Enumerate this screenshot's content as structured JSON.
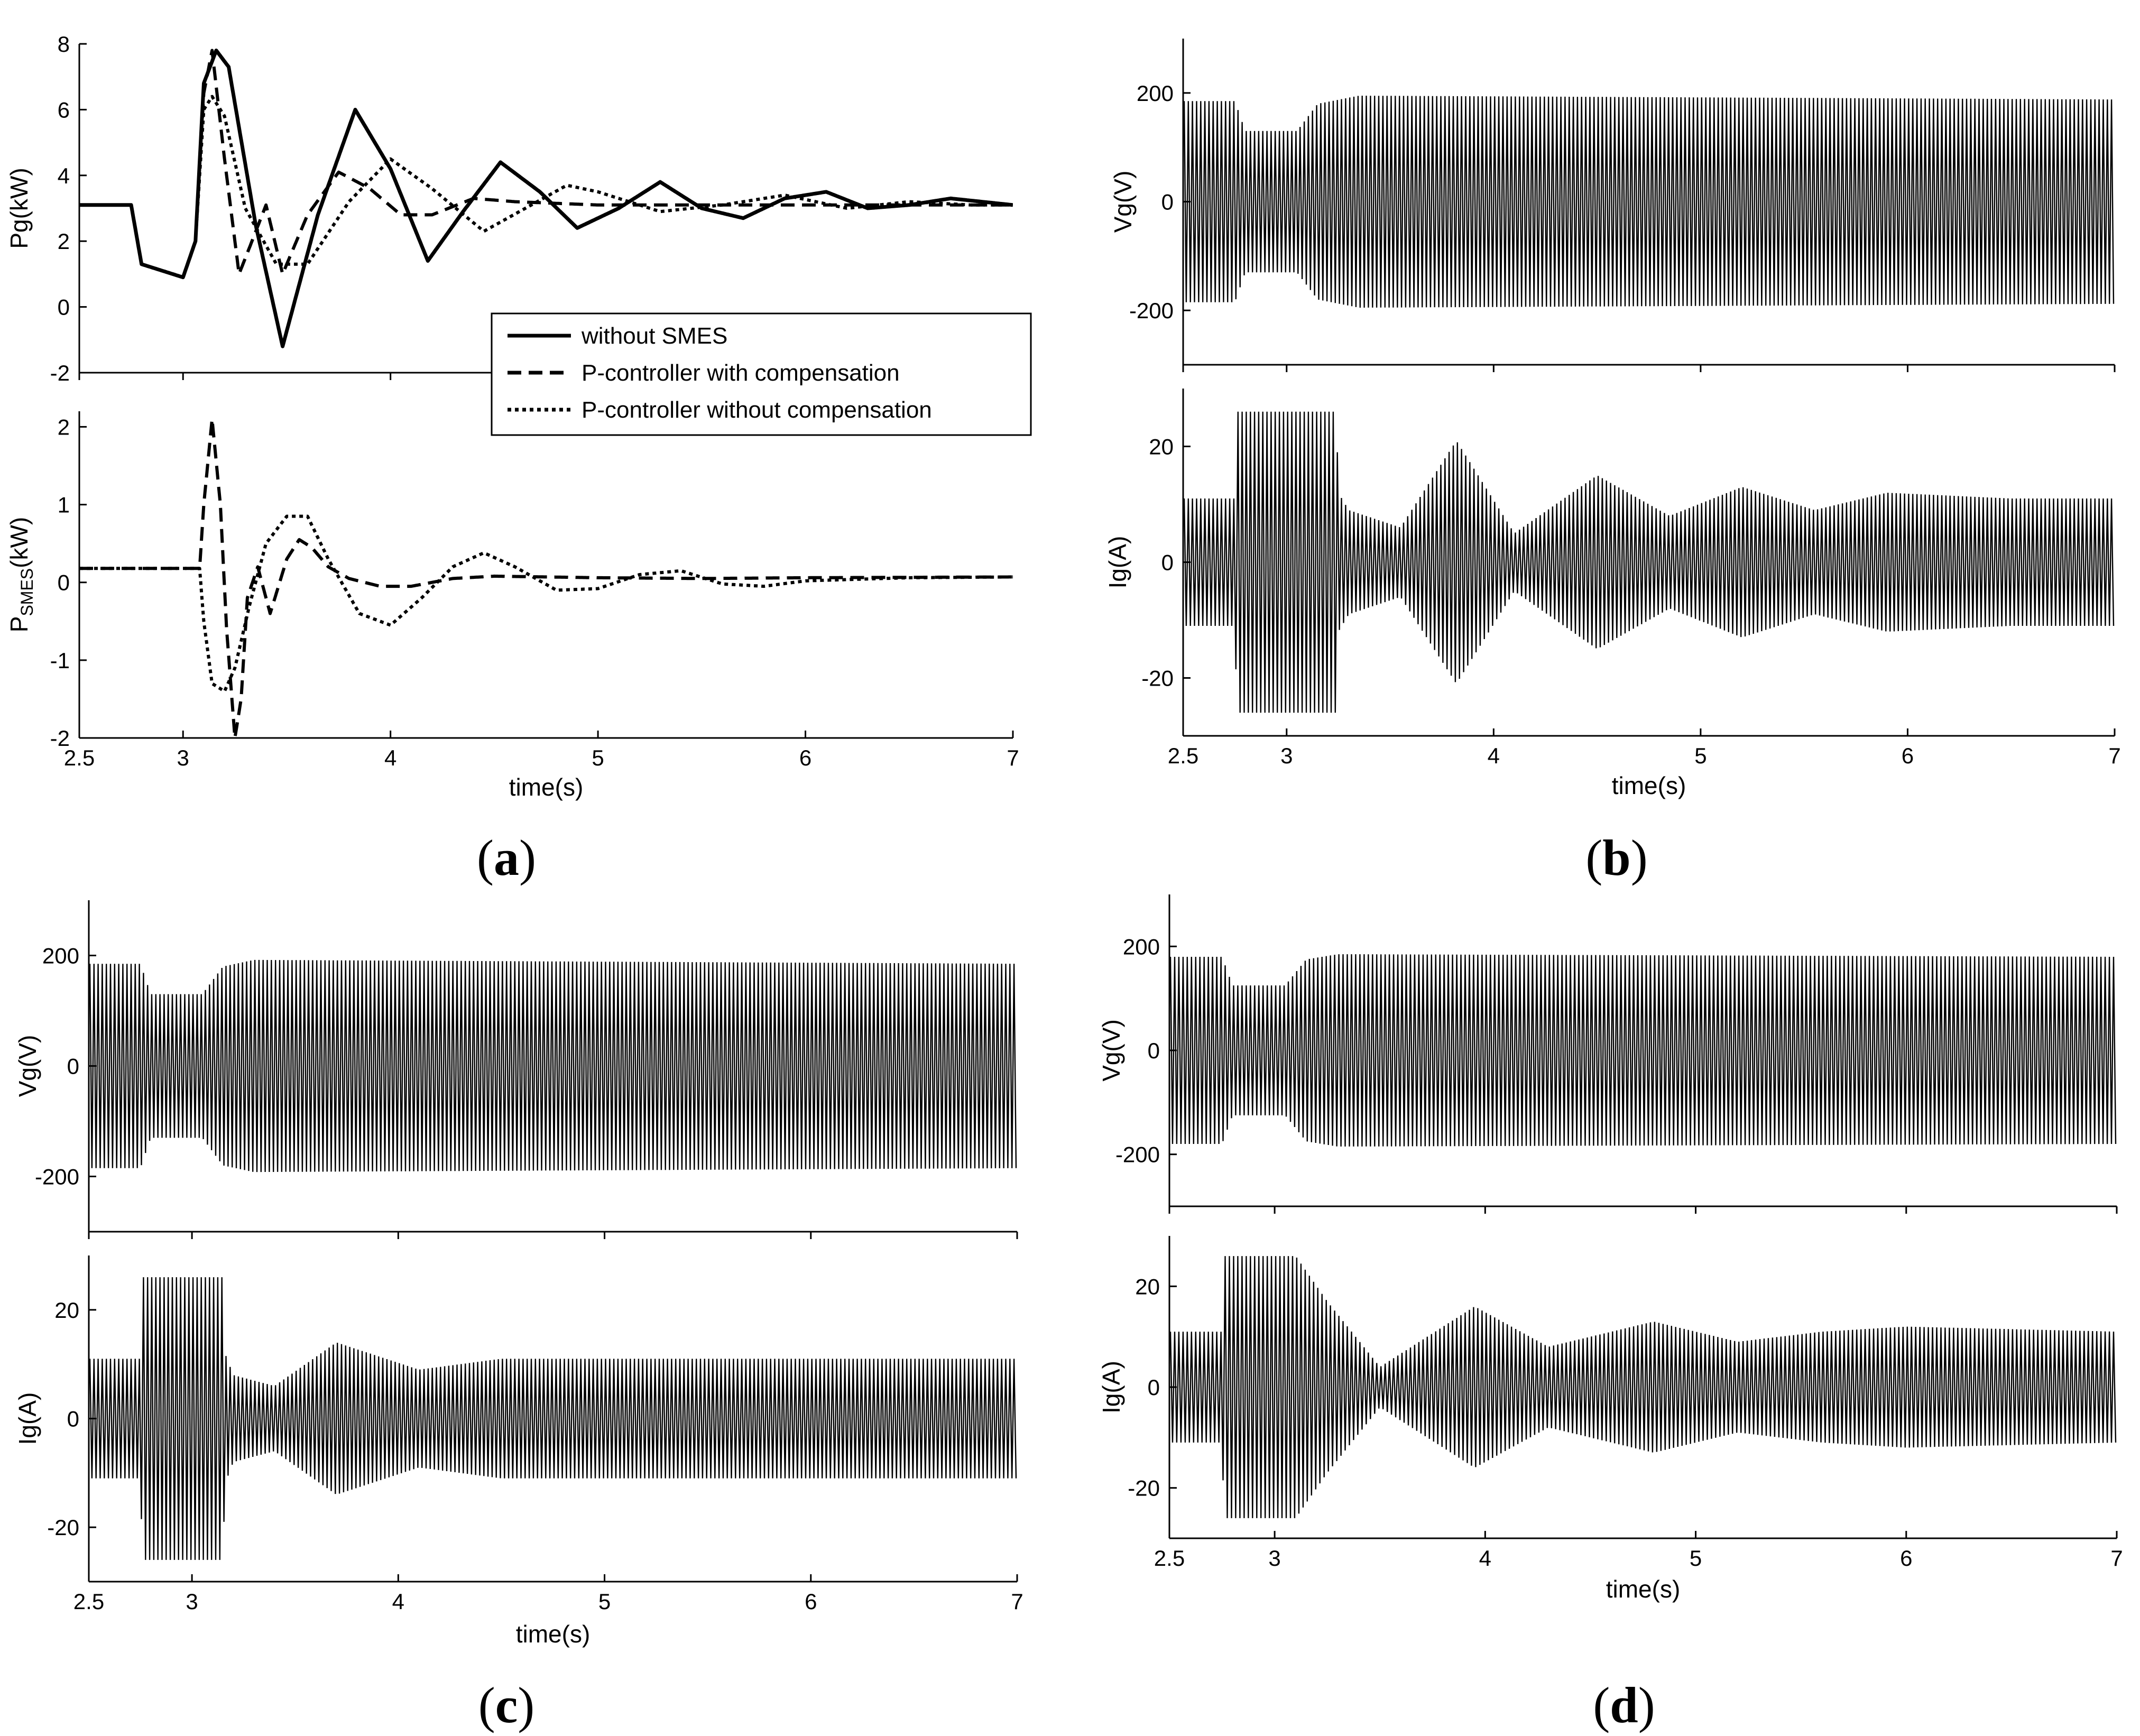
{
  "panel_labels": [
    "a",
    "b",
    "c",
    "d"
  ],
  "chart_data": [
    {
      "panel": "a",
      "type": "line",
      "xlabel": "time(s)",
      "ylabel": "Pg(kW)",
      "xlim": [
        2.5,
        7
      ],
      "ylim": [
        -2,
        8
      ],
      "xticks": [
        2.5,
        3,
        4,
        5,
        6,
        7
      ],
      "yticks": [
        -2,
        0,
        2,
        4,
        6,
        8
      ],
      "legend": {
        "position": "lower-right",
        "entries": [
          "without SMES",
          "P-controller  with compensation",
          "P-controller  without compensation"
        ]
      },
      "series": [
        {
          "name": "without SMES",
          "style": "solid",
          "x": [
            2.5,
            2.75,
            2.8,
            3.0,
            3.06,
            3.1,
            3.16,
            3.22,
            3.35,
            3.48,
            3.65,
            3.83,
            4.0,
            4.18,
            4.35,
            4.53,
            4.72,
            4.9,
            5.1,
            5.3,
            5.5,
            5.7,
            5.9,
            6.1,
            6.3,
            6.5,
            6.7,
            7.0
          ],
          "y": [
            3.1,
            3.1,
            1.3,
            0.9,
            2.0,
            6.8,
            7.8,
            7.3,
            2.5,
            -1.2,
            2.8,
            6.0,
            4.2,
            1.4,
            2.9,
            4.4,
            3.5,
            2.4,
            3.0,
            3.8,
            3.0,
            2.7,
            3.3,
            3.5,
            3.0,
            3.1,
            3.3,
            3.1
          ]
        },
        {
          "name": "P-controller  with compensation",
          "style": "dashed",
          "x": [
            2.5,
            2.75,
            2.8,
            3.0,
            3.06,
            3.1,
            3.14,
            3.2,
            3.27,
            3.32,
            3.4,
            3.48,
            3.6,
            3.75,
            3.9,
            4.05,
            4.2,
            4.4,
            4.6,
            5.0,
            5.5,
            6.0,
            6.5,
            7.0
          ],
          "y": [
            3.1,
            3.1,
            1.3,
            0.9,
            2.0,
            6.5,
            7.8,
            4.5,
            1.0,
            1.8,
            3.1,
            1.0,
            2.8,
            4.1,
            3.6,
            2.8,
            2.8,
            3.3,
            3.2,
            3.1,
            3.1,
            3.1,
            3.1,
            3.1
          ]
        },
        {
          "name": "P-controller  without compensation",
          "style": "dotted",
          "x": [
            2.5,
            2.75,
            2.8,
            3.0,
            3.06,
            3.1,
            3.14,
            3.2,
            3.3,
            3.45,
            3.6,
            3.8,
            4.0,
            4.2,
            4.45,
            4.65,
            4.85,
            5.0,
            5.3,
            5.6,
            5.9,
            6.2,
            6.5,
            6.8,
            7.0
          ],
          "y": [
            3.1,
            3.1,
            1.3,
            0.9,
            2.0,
            6.0,
            6.4,
            5.8,
            3.0,
            1.3,
            1.3,
            3.2,
            4.5,
            3.6,
            2.3,
            3.0,
            3.7,
            3.5,
            2.9,
            3.1,
            3.4,
            3.0,
            3.2,
            3.1,
            3.1
          ]
        }
      ]
    },
    {
      "panel": "a",
      "type": "line",
      "xlabel": "time(s)",
      "ylabel": "P",
      "ylabel_sub": "SMES",
      "ylabel_suffix": "(kW)",
      "xlim": [
        2.5,
        7
      ],
      "ylim": [
        -2,
        2.2
      ],
      "xticks": [
        2.5,
        3,
        4,
        5,
        6,
        7
      ],
      "yticks": [
        -2,
        -1,
        0,
        1,
        2
      ],
      "series": [
        {
          "name": "P-controller  with compensation",
          "style": "dashed",
          "x": [
            2.5,
            3.08,
            3.1,
            3.14,
            3.18,
            3.21,
            3.25,
            3.28,
            3.31,
            3.36,
            3.42,
            3.5,
            3.56,
            3.62,
            3.7,
            3.8,
            3.95,
            4.1,
            4.3,
            4.5,
            5.0,
            5.5,
            6.0,
            7.0
          ],
          "y": [
            0.18,
            0.18,
            1.0,
            2.1,
            1.0,
            -0.6,
            -2.0,
            -1.5,
            -0.2,
            0.2,
            -0.4,
            0.3,
            0.55,
            0.45,
            0.2,
            0.05,
            -0.05,
            -0.05,
            0.05,
            0.08,
            0.06,
            0.05,
            0.06,
            0.07
          ]
        },
        {
          "name": "P-controller  without compensation",
          "style": "dotted",
          "x": [
            2.5,
            3.08,
            3.1,
            3.14,
            3.2,
            3.25,
            3.32,
            3.4,
            3.5,
            3.6,
            3.7,
            3.85,
            4.0,
            4.15,
            4.3,
            4.45,
            4.6,
            4.8,
            5.0,
            5.2,
            5.4,
            5.6,
            5.8,
            6.0,
            6.5,
            7.0
          ],
          "y": [
            0.18,
            0.18,
            -0.5,
            -1.3,
            -1.4,
            -1.1,
            -0.3,
            0.5,
            0.85,
            0.85,
            0.3,
            -0.4,
            -0.55,
            -0.2,
            0.2,
            0.38,
            0.2,
            -0.1,
            -0.08,
            0.1,
            0.15,
            -0.02,
            -0.05,
            0.02,
            0.06,
            0.07
          ]
        }
      ]
    },
    {
      "panel": "b",
      "type": "line",
      "xlabel": "time(s)",
      "ylabel": "Vg(V)",
      "xlim": [
        2.5,
        7
      ],
      "ylim": [
        -300,
        300
      ],
      "xticks": [
        2.5,
        3,
        4,
        5,
        6,
        7
      ],
      "yticks": [
        -200,
        0,
        200
      ],
      "envelope": {
        "x": [
          2.5,
          2.75,
          2.8,
          3.05,
          3.15,
          3.35,
          7.0
        ],
        "amplitude": [
          185,
          185,
          130,
          130,
          180,
          195,
          188
        ]
      }
    },
    {
      "panel": "b",
      "type": "line",
      "xlabel": "time(s)",
      "ylabel": "Ig(A)",
      "xlim": [
        2.5,
        7
      ],
      "ylim": [
        -30,
        30
      ],
      "xticks": [
        2.5,
        3,
        4,
        5,
        6,
        7
      ],
      "yticks": [
        -20,
        0,
        20
      ],
      "envelope": {
        "x": [
          2.5,
          2.75,
          2.76,
          3.24,
          3.25,
          3.3,
          3.55,
          3.82,
          4.1,
          4.5,
          4.85,
          5.2,
          5.55,
          5.9,
          6.5,
          7.0
        ],
        "amplitude": [
          11,
          11,
          26,
          26,
          12,
          9,
          6,
          21,
          5,
          15,
          8,
          13,
          9,
          12,
          11,
          11
        ]
      }
    },
    {
      "panel": "c",
      "type": "line",
      "xlabel": "time(s)",
      "ylabel": "Vg(V)",
      "xlim": [
        2.5,
        7
      ],
      "ylim": [
        -300,
        300
      ],
      "xticks": [
        2.5,
        3,
        4,
        5,
        6,
        7
      ],
      "yticks": [
        -200,
        0,
        200
      ],
      "envelope": {
        "x": [
          2.5,
          2.75,
          2.8,
          3.05,
          3.15,
          3.3,
          7.0
        ],
        "amplitude": [
          185,
          185,
          130,
          130,
          180,
          192,
          185
        ]
      }
    },
    {
      "panel": "c",
      "type": "line",
      "xlabel": "time(s)",
      "ylabel": "Ig(A)",
      "xlim": [
        2.5,
        7
      ],
      "ylim": [
        -30,
        30
      ],
      "xticks": [
        2.5,
        3,
        4,
        5,
        6,
        7
      ],
      "yticks": [
        -20,
        0,
        20
      ],
      "envelope": {
        "x": [
          2.5,
          2.75,
          2.76,
          3.15,
          3.16,
          3.2,
          3.4,
          3.7,
          4.1,
          4.5,
          7.0
        ],
        "amplitude": [
          11,
          11,
          26,
          26,
          12,
          8,
          6,
          14,
          9,
          11,
          11
        ]
      }
    },
    {
      "panel": "d",
      "type": "line",
      "xlabel": "time(s)",
      "ylabel": "Vg(V)",
      "xlim": [
        2.5,
        7
      ],
      "ylim": [
        -300,
        300
      ],
      "xticks": [
        2.5,
        3,
        4,
        5,
        6,
        7
      ],
      "yticks": [
        -200,
        0,
        200
      ],
      "envelope": {
        "x": [
          2.5,
          2.75,
          2.8,
          3.05,
          3.15,
          3.3,
          7.0
        ],
        "amplitude": [
          180,
          180,
          125,
          125,
          175,
          185,
          180
        ]
      }
    },
    {
      "panel": "d",
      "type": "line",
      "xlabel": "time(s)",
      "ylabel": "Ig(A)",
      "xlim": [
        2.5,
        7
      ],
      "ylim": [
        -30,
        30
      ],
      "xticks": [
        2.5,
        3,
        4,
        5,
        6,
        7
      ],
      "yticks": [
        -20,
        0,
        20
      ],
      "envelope": {
        "x": [
          2.5,
          2.75,
          2.76,
          3.1,
          3.25,
          3.5,
          3.95,
          4.3,
          4.8,
          5.2,
          5.6,
          6.0,
          7.0
        ],
        "amplitude": [
          11,
          11,
          26,
          26,
          17,
          4,
          16,
          8,
          13,
          9,
          11,
          12,
          11
        ]
      }
    }
  ]
}
